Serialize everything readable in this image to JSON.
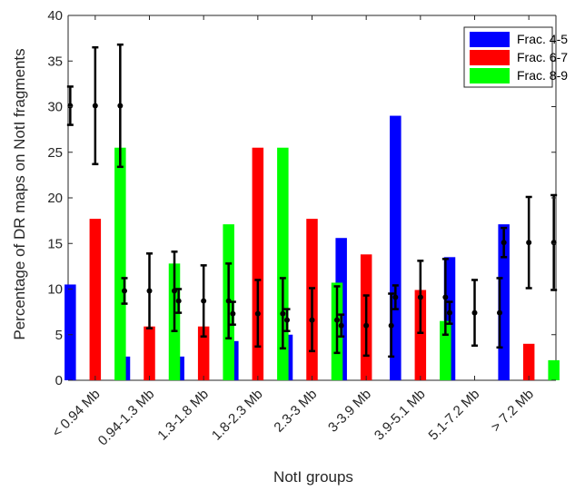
{
  "chart_data": {
    "type": "bar",
    "title": "",
    "xlabel": "NotI groups",
    "ylabel": "Percentage of DR maps on NotI fragments",
    "ylim": [
      0,
      40
    ],
    "yticks": [
      0,
      5,
      10,
      15,
      20,
      25,
      30,
      35,
      40
    ],
    "grid": false,
    "legend_position": "top-right",
    "categories": [
      "< 0.94 Mb",
      "0.94-1.3 Mb",
      "1.3-1.8 Mb",
      "1.8-2.3 Mb",
      "2.3-3 Mb",
      "3-3.9 Mb",
      "3.9-5.1 Mb",
      "5.1-7.2 Mb",
      "> 7.2 Mb"
    ],
    "series": [
      {
        "name": "Frac. 4-5",
        "color": "#0000ff",
        "values": [
          10.5,
          2.6,
          2.6,
          4.3,
          5.0,
          15.6,
          29.0,
          13.5,
          17.1
        ]
      },
      {
        "name": "Frac. 6-7",
        "color": "#ff0000",
        "values": [
          17.7,
          5.9,
          5.9,
          25.5,
          17.7,
          13.8,
          9.9,
          0.0,
          4.0
        ]
      },
      {
        "name": "Frac. 8-9",
        "color": "#00ff00",
        "values": [
          25.5,
          12.8,
          17.1,
          25.5,
          10.7,
          0.0,
          6.5,
          0.0,
          2.2
        ]
      }
    ],
    "expected": {
      "color": "#000000",
      "groups": [
        {
          "mean": 30.1,
          "bars": [
            [
              28.0,
              32.2
            ],
            [
              23.7,
              36.5
            ],
            [
              23.4,
              36.8
            ]
          ]
        },
        {
          "mean": 9.8,
          "bars": [
            [
              8.4,
              11.2
            ],
            [
              5.7,
              13.9
            ],
            [
              5.4,
              14.1
            ]
          ]
        },
        {
          "mean": 8.7,
          "bars": [
            [
              7.4,
              10.0
            ],
            [
              4.8,
              12.6
            ],
            [
              4.6,
              12.8
            ]
          ]
        },
        {
          "mean": 7.3,
          "bars": [
            [
              6.1,
              8.6
            ],
            [
              3.7,
              11.0
            ],
            [
              3.5,
              11.2
            ]
          ]
        },
        {
          "mean": 6.6,
          "bars": [
            [
              5.4,
              7.8
            ],
            [
              3.2,
              10.1
            ],
            [
              3.0,
              10.3
            ]
          ]
        },
        {
          "mean": 6.0,
          "bars": [
            [
              4.8,
              7.2
            ],
            [
              2.7,
              9.3
            ],
            [
              2.6,
              9.5
            ]
          ]
        },
        {
          "mean": 9.1,
          "bars": [
            [
              7.8,
              10.4
            ],
            [
              5.2,
              13.1
            ],
            [
              5.0,
              13.3
            ]
          ]
        },
        {
          "mean": 7.4,
          "bars": [
            [
              6.2,
              8.6
            ],
            [
              3.8,
              11.0
            ],
            [
              3.6,
              11.2
            ]
          ]
        },
        {
          "mean": 15.1,
          "bars": [
            [
              13.5,
              16.7
            ],
            [
              10.1,
              20.1
            ],
            [
              9.9,
              20.3
            ]
          ]
        }
      ]
    }
  }
}
